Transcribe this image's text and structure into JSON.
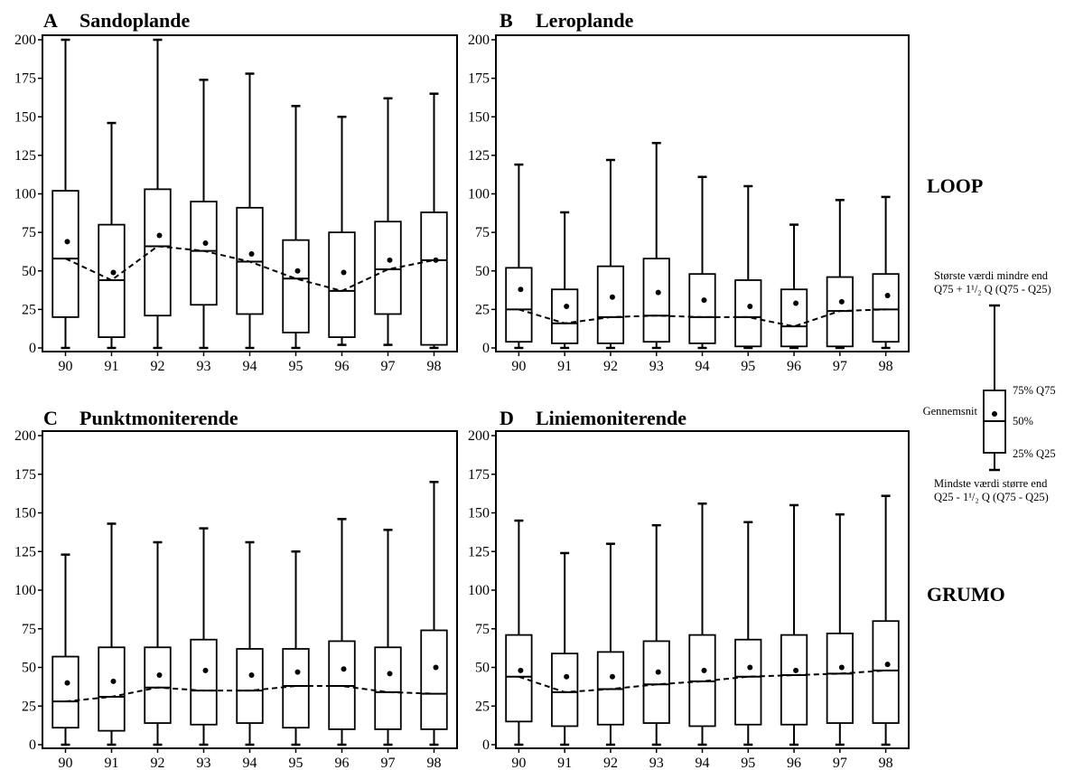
{
  "chart_data": [
    {
      "type": "box",
      "letter": "A",
      "title": "Sandoplande",
      "categories": [
        "90",
        "91",
        "92",
        "93",
        "94",
        "95",
        "96",
        "97",
        "98"
      ],
      "ylim": [
        0,
        200
      ],
      "yticks": [
        "0",
        "25",
        "50",
        "75",
        "100",
        "125",
        "150",
        "175",
        "200"
      ],
      "whisker_low": [
        0,
        0,
        0,
        0,
        0,
        0,
        2,
        2,
        0
      ],
      "q25": [
        20,
        7,
        21,
        28,
        22,
        10,
        7,
        22,
        2
      ],
      "median": [
        58,
        44,
        66,
        63,
        56,
        45,
        37,
        51,
        57
      ],
      "q75": [
        102,
        80,
        103,
        95,
        91,
        70,
        75,
        82,
        88
      ],
      "whisker_high": [
        200,
        146,
        200,
        174,
        178,
        157,
        150,
        162,
        165
      ],
      "mean": [
        69,
        49,
        73,
        68,
        61,
        50,
        49,
        57,
        57
      ]
    },
    {
      "type": "box",
      "letter": "B",
      "title": "Leroplande",
      "categories": [
        "90",
        "91",
        "92",
        "93",
        "94",
        "95",
        "96",
        "97",
        "98"
      ],
      "ylim": [
        0,
        200
      ],
      "yticks": [
        "0",
        "25",
        "50",
        "75",
        "100",
        "125",
        "150",
        "175",
        "200"
      ],
      "whisker_low": [
        0,
        0,
        0,
        0,
        0,
        0,
        0,
        0,
        0
      ],
      "q25": [
        4,
        3,
        3,
        4,
        3,
        1,
        1,
        1,
        4
      ],
      "median": [
        25,
        16,
        20,
        21,
        20,
        20,
        14,
        24,
        25
      ],
      "q75": [
        52,
        38,
        53,
        58,
        48,
        44,
        38,
        46,
        48
      ],
      "whisker_high": [
        119,
        88,
        122,
        133,
        111,
        105,
        80,
        96,
        98
      ],
      "mean": [
        38,
        27,
        33,
        36,
        31,
        27,
        29,
        30,
        34
      ]
    },
    {
      "type": "box",
      "letter": "C",
      "title": "Punktmoniterende",
      "categories": [
        "90",
        "91",
        "92",
        "93",
        "94",
        "95",
        "96",
        "97",
        "98"
      ],
      "ylim": [
        0,
        200
      ],
      "yticks": [
        "0",
        "25",
        "50",
        "75",
        "100",
        "125",
        "150",
        "175",
        "200"
      ],
      "whisker_low": [
        0,
        0,
        0,
        0,
        0,
        0,
        0,
        0,
        0
      ],
      "q25": [
        11,
        9,
        14,
        13,
        14,
        11,
        10,
        10,
        10
      ],
      "median": [
        28,
        31,
        37,
        35,
        35,
        38,
        38,
        34,
        33
      ],
      "q75": [
        57,
        63,
        63,
        68,
        62,
        62,
        67,
        63,
        74
      ],
      "whisker_high": [
        123,
        143,
        131,
        140,
        131,
        125,
        146,
        139,
        170
      ],
      "mean": [
        40,
        41,
        45,
        48,
        45,
        47,
        49,
        46,
        50
      ]
    },
    {
      "type": "box",
      "letter": "D",
      "title": "Liniemoniterende",
      "categories": [
        "90",
        "91",
        "92",
        "93",
        "94",
        "95",
        "96",
        "97",
        "98"
      ],
      "ylim": [
        0,
        200
      ],
      "yticks": [
        "0",
        "25",
        "50",
        "75",
        "100",
        "125",
        "150",
        "175",
        "200"
      ],
      "whisker_low": [
        0,
        0,
        0,
        0,
        0,
        0,
        0,
        0,
        0
      ],
      "q25": [
        15,
        12,
        13,
        14,
        12,
        13,
        13,
        14,
        14
      ],
      "median": [
        44,
        34,
        36,
        39,
        41,
        44,
        45,
        46,
        48
      ],
      "q75": [
        71,
        59,
        60,
        67,
        71,
        68,
        71,
        72,
        80
      ],
      "whisker_high": [
        145,
        124,
        130,
        142,
        156,
        144,
        155,
        149,
        161
      ],
      "mean": [
        48,
        44,
        44,
        47,
        48,
        50,
        48,
        50,
        52
      ]
    }
  ],
  "side_labels": {
    "top": "LOOP",
    "bottom": "GRUMO"
  },
  "legend": {
    "top_line1": "Største værdi mindre end",
    "top_line2": "Q75 + 1¹/₂ Q (Q75 - Q25)",
    "q75": "75% Q75",
    "median": "50%",
    "q25": "25% Q25",
    "mean": "Gennemsnit",
    "bottom_line1": "Mindste værdi større end",
    "bottom_line2": "Q25 - 1¹/₂ Q (Q75 - Q25)"
  }
}
